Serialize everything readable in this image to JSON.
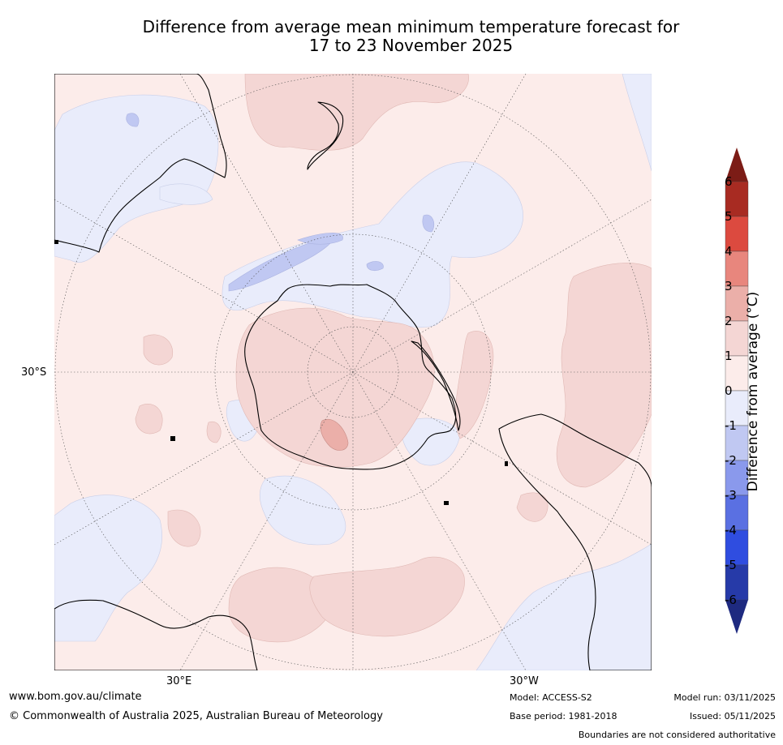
{
  "title_line1": "Difference from average mean minimum temperature forecast for",
  "title_line2": "17 to 23 November 2025",
  "map": {
    "projection": "south-polar-stereographic",
    "lat_label": "30°S",
    "lon_label_east": "30°E",
    "lon_label_west": "30°W",
    "colors": {
      "ocean_base": "#fcecea",
      "warm_1_2": "#f4d6d4",
      "warm_2_3": "#ebafa9",
      "cool_0_m1": "#e9ecfb",
      "cool_m1_m2": "#c0c8f2",
      "coast": "#000000"
    }
  },
  "colorbar": {
    "title": "Difference from average (°C)",
    "ticks": [
      "6",
      "5",
      "4",
      "3",
      "2",
      "1",
      "0",
      "-1",
      "-2",
      "-3",
      "-4",
      "-5",
      "-6"
    ],
    "colors": [
      "#7c1c16",
      "#a82b22",
      "#dc4a3f",
      "#e8867d",
      "#ebafa9",
      "#f4d6d4",
      "#fcecea",
      "#e9ecfb",
      "#c0c8f2",
      "#8a99ec",
      "#5a70e2",
      "#2f4de0",
      "#263aa8",
      "#1e2a80"
    ]
  },
  "footer": {
    "url": "www.bom.gov.au/climate",
    "copyright": "© Commonwealth of Australia 2025, Australian Bureau of Meteorology",
    "model": "Model: ACCESS-S2",
    "base_period": "Base period: 1981-2018",
    "model_run": "Model run: 03/11/2025",
    "issued": "Issued: 05/11/2025",
    "boundaries": "Boundaries are not considered authoritative"
  }
}
